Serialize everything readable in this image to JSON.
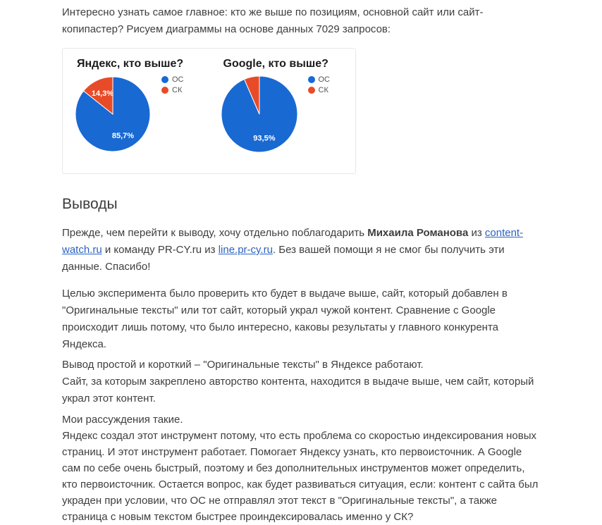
{
  "article": {
    "intro": "Интересно узнать самое главное: кто же выше по позициям, основной сайт или сайт-копипастер? Рисуем диаграммы на основе данных 7029 запросов:",
    "conclusions_heading": "Выводы",
    "thanks": {
      "part1": "Прежде, чем перейти к выводу, хочу отдельно поблагодарить ",
      "bold_name": "Михаила Романова",
      "part2": " из ",
      "link1": "content-watch.ru",
      "part3": " и команду PR-CY.ru из ",
      "link2": "line.pr-cy.ru",
      "part4": ". Без вашей помощи я не смог бы получить эти данные. Спасибо!"
    },
    "goal": "Целью эксперимента было проверить кто будет в выдаче выше, сайт, который добавлен в \"Оригинальные тексты\" или тот сайт, который украл чужой контент. Сравнение с Google происходит лишь потому, что было интересно, каковы результаты у главного конкурента Яндекса.",
    "conclusion_line1": "Вывод простой и короткий – \"Оригинальные тексты\" в Яндексе работают.",
    "conclusion_line2": "Сайт, за которым закреплено авторство контента, находится в выдаче выше, чем сайт, который украл этот контент.",
    "reasoning_line1": "Мои рассуждения такие.",
    "reasoning_rest": "Яндекс создал этот инструмент потому, что есть проблема со скоростью индексирования новых страниц. И этот инструмент работает. Помогает Яндексу узнать, кто первоисточник. А Google сам по себе очень быстрый, поэтому и без дополнительных инструментов может определить, кто первоисточник. Остается вопрос, как будет развиваться ситуация, если: контент с сайта был украден при условии, что ОС не отправлял этот текст в \"Оригинальные тексты\", а также страница с новым текстом быстрее проиндексировалась именно у СК?"
  },
  "chart_data": [
    {
      "type": "pie",
      "title": "Яндекс, кто выше?",
      "slices": [
        {
          "name": "ОС",
          "value": 85.7,
          "label": "85,7%"
        },
        {
          "name": "СК",
          "value": 14.3,
          "label": "14,3%"
        }
      ],
      "colors": [
        "#1969d2",
        "#e84b28"
      ],
      "legend_position": "right"
    },
    {
      "type": "pie",
      "title": "Google, кто выше?",
      "slices": [
        {
          "name": "ОС",
          "value": 93.5,
          "label": "93,5%"
        },
        {
          "name": "СК",
          "value": 6.5
        }
      ],
      "colors": [
        "#1969d2",
        "#e84b28"
      ],
      "legend_position": "right"
    }
  ]
}
